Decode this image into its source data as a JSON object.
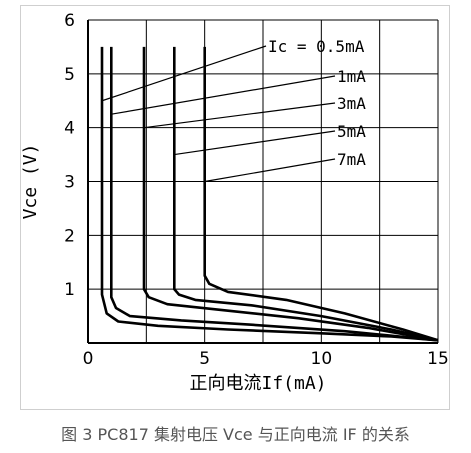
{
  "chart_data": {
    "type": "line",
    "title": "",
    "xlabel": "正向电流If(mA)",
    "ylabel": "Vce (V)",
    "xlim": [
      0,
      15
    ],
    "ylim": [
      0,
      6
    ],
    "x_ticks": [
      "0",
      "5",
      "10",
      "15"
    ],
    "y_ticks": [
      "1",
      "2",
      "3",
      "4",
      "5",
      "6"
    ],
    "grid": true,
    "series": [
      {
        "name": "Ic=0.5mA",
        "points": [
          [
            0.6,
            5.5
          ],
          [
            0.6,
            0.9
          ],
          [
            0.8,
            0.55
          ],
          [
            1.3,
            0.4
          ],
          [
            3,
            0.32
          ],
          [
            6,
            0.25
          ],
          [
            10,
            0.18
          ],
          [
            13,
            0.12
          ],
          [
            15,
            0.05
          ]
        ]
      },
      {
        "name": "1mA",
        "points": [
          [
            1.0,
            5.5
          ],
          [
            1.0,
            0.85
          ],
          [
            1.2,
            0.65
          ],
          [
            1.8,
            0.5
          ],
          [
            4,
            0.42
          ],
          [
            7,
            0.34
          ],
          [
            11,
            0.22
          ],
          [
            15,
            0.05
          ]
        ]
      },
      {
        "name": "3mA",
        "points": [
          [
            2.4,
            5.5
          ],
          [
            2.4,
            1.0
          ],
          [
            2.6,
            0.85
          ],
          [
            3.4,
            0.72
          ],
          [
            6,
            0.6
          ],
          [
            9,
            0.46
          ],
          [
            12,
            0.28
          ],
          [
            15,
            0.05
          ]
        ]
      },
      {
        "name": "5mA",
        "points": [
          [
            3.7,
            5.5
          ],
          [
            3.7,
            1.0
          ],
          [
            3.9,
            0.9
          ],
          [
            4.6,
            0.8
          ],
          [
            7,
            0.7
          ],
          [
            10,
            0.5
          ],
          [
            13,
            0.25
          ],
          [
            15,
            0.05
          ]
        ]
      },
      {
        "name": "7mA",
        "points": [
          [
            5.0,
            5.5
          ],
          [
            5.0,
            1.25
          ],
          [
            5.2,
            1.1
          ],
          [
            6,
            0.95
          ],
          [
            8.5,
            0.8
          ],
          [
            11,
            0.55
          ],
          [
            13.5,
            0.25
          ],
          [
            15,
            0.05
          ]
        ]
      }
    ],
    "annotations": [
      {
        "text": "Ic = 0.5mA",
        "series": "Ic=0.5mA",
        "anchor": [
          0.6,
          4.5
        ]
      },
      {
        "text": "1mA",
        "series": "1mA",
        "anchor": [
          1.0,
          4.25
        ]
      },
      {
        "text": "3mA",
        "series": "3mA",
        "anchor": [
          2.4,
          4.0
        ]
      },
      {
        "text": "5mA",
        "series": "5mA",
        "anchor": [
          3.7,
          3.5
        ]
      },
      {
        "text": "7mA",
        "series": "7mA",
        "anchor": [
          5.0,
          3.0
        ]
      }
    ]
  },
  "caption": "图 3 PC817 集射电压 Vce 与正向电流 IF 的关系"
}
